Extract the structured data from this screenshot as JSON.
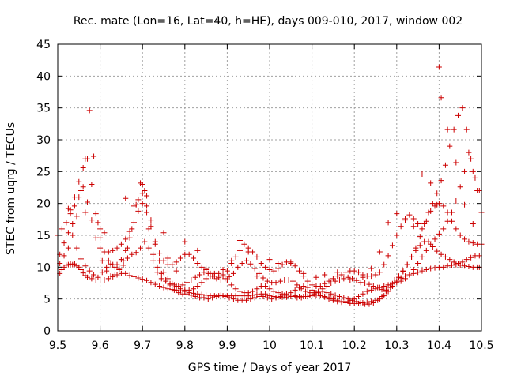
{
  "chart_data": {
    "type": "scatter",
    "title": "Rec. mate (Lon=16, Lat=40, h=HE), days 009-010, 2017, window 002",
    "xlabel": "GPS time / Days of year 2017",
    "ylabel": "STEC from uqrg / TECUs",
    "xlim": [
      9.5,
      10.5
    ],
    "ylim": [
      0,
      45
    ],
    "xticks": [
      9.5,
      9.6,
      9.7,
      9.8,
      9.9,
      10.0,
      10.1,
      10.2,
      10.3,
      10.4,
      10.5
    ],
    "xtick_labels": [
      "9.5",
      "9.6",
      "9.7",
      "9.8",
      "9.9",
      "10",
      "10.1",
      "10.2",
      "10.3",
      "10.4",
      "10.5"
    ],
    "yticks": [
      0,
      5,
      10,
      15,
      20,
      25,
      30,
      35,
      40,
      45
    ],
    "ytick_labels": [
      "0",
      "5",
      "10",
      "15",
      "20",
      "25",
      "30",
      "35",
      "40",
      "45"
    ],
    "grid": true,
    "marker": "+",
    "color": "#cc0000",
    "series": [
      {
        "x": [
          9.505,
          9.51,
          9.515,
          9.52,
          9.525,
          9.53,
          9.535,
          9.54,
          9.545,
          9.55,
          9.555,
          9.56,
          9.565,
          9.57,
          9.58,
          9.59,
          9.6,
          9.61,
          9.62,
          9.63,
          9.64,
          9.65,
          9.66,
          9.67,
          9.68,
          9.69,
          9.7,
          9.71,
          9.72,
          9.73,
          9.74,
          9.75,
          9.76,
          9.77,
          9.78,
          9.79,
          9.8,
          9.81,
          9.82,
          9.83,
          9.84,
          9.85,
          9.86,
          9.87,
          9.88,
          9.89,
          9.9,
          9.91,
          9.92,
          9.93,
          9.94,
          9.95,
          9.96,
          9.97,
          9.98,
          9.99,
          10.0,
          10.01,
          10.02,
          10.03,
          10.04,
          10.05,
          10.06,
          10.07,
          10.08,
          10.09,
          10.1,
          10.11,
          10.12,
          10.13,
          10.14,
          10.15,
          10.16,
          10.17,
          10.18,
          10.19,
          10.2,
          10.21,
          10.22,
          10.23,
          10.24,
          10.25,
          10.26,
          10.27,
          10.28,
          10.29,
          10.3,
          10.31,
          10.32,
          10.33,
          10.34,
          10.35,
          10.36,
          10.37,
          10.38,
          10.39,
          10.4,
          10.41,
          10.42,
          10.43,
          10.44,
          10.45,
          10.46,
          10.47,
          10.48,
          10.49,
          10.495
        ],
        "y": [
          9.0,
          9.6,
          10.0,
          10.3,
          10.4,
          10.5,
          10.4,
          10.5,
          10.2,
          10.0,
          9.6,
          9.1,
          8.7,
          8.4,
          8.2,
          8.0,
          8.0,
          8.0,
          8.2,
          8.5,
          8.8,
          9.0,
          9.0,
          8.7,
          8.5,
          8.3,
          8.1,
          7.9,
          7.6,
          7.3,
          7.0,
          6.8,
          6.6,
          6.5,
          6.4,
          6.3,
          6.2,
          6.0,
          5.9,
          5.8,
          5.7,
          5.6,
          5.5,
          5.5,
          5.5,
          5.5,
          5.5,
          5.5,
          5.5,
          5.5,
          5.5,
          5.5,
          5.6,
          5.7,
          5.8,
          5.8,
          5.5,
          5.4,
          5.3,
          5.3,
          5.3,
          5.4,
          5.5,
          5.4,
          5.4,
          5.4,
          5.5,
          5.6,
          5.5,
          5.3,
          5.0,
          4.8,
          4.6,
          4.5,
          4.4,
          4.3,
          4.3,
          4.3,
          4.4,
          4.5,
          4.6,
          4.8,
          5.0,
          5.5,
          6.2,
          7.0,
          7.8,
          8.3,
          8.6,
          8.8,
          9.0,
          9.2,
          9.4,
          9.6,
          9.8,
          9.9,
          10.0,
          10.0,
          10.2,
          10.3,
          10.4,
          10.3,
          10.2,
          10.1,
          10.0,
          10.0,
          10.0
        ]
      },
      {
        "x": [
          9.505,
          9.515,
          9.525,
          9.535,
          9.545,
          9.555,
          9.565,
          9.575,
          9.585,
          9.595,
          9.605,
          9.615,
          9.625,
          9.635,
          9.645,
          9.655,
          9.665,
          9.675,
          9.685,
          9.695,
          9.705,
          9.715,
          9.725,
          9.735,
          9.745,
          9.755,
          9.765,
          9.775,
          9.785,
          9.795,
          9.805,
          9.815,
          9.825,
          9.835,
          9.845,
          9.855,
          9.865,
          9.875,
          9.885,
          9.895,
          9.905,
          9.915,
          9.925,
          9.935,
          9.945,
          9.955,
          9.965,
          9.975,
          9.985,
          9.995,
          10.005,
          10.015,
          10.025,
          10.035,
          10.045,
          10.055,
          10.065,
          10.075,
          10.085,
          10.095,
          10.105,
          10.115,
          10.125,
          10.135,
          10.145,
          10.155,
          10.165,
          10.175,
          10.185,
          10.195,
          10.205,
          10.215,
          10.225,
          10.235,
          10.245,
          10.255,
          10.265,
          10.275,
          10.285,
          10.295,
          10.305,
          10.315,
          10.325,
          10.335,
          10.345,
          10.355,
          10.365,
          10.375,
          10.385,
          10.395,
          10.405,
          10.415,
          10.425,
          10.435,
          10.445,
          10.455,
          10.465,
          10.475,
          10.485,
          10.495
        ],
        "y": [
          12.0,
          13.8,
          15.4,
          16.8,
          13.0,
          11.3,
          10.2,
          9.4,
          8.8,
          8.4,
          9.2,
          10.0,
          10.5,
          10.0,
          9.8,
          10.3,
          11.4,
          12.0,
          12.3,
          13.0,
          14.0,
          13.0,
          11.0,
          9.2,
          8.2,
          7.8,
          7.4,
          7.2,
          7.0,
          7.2,
          7.6,
          8.0,
          8.4,
          8.8,
          9.2,
          9.0,
          8.6,
          8.2,
          8.0,
          8.2,
          8.5,
          9.0,
          10.0,
          10.6,
          11.0,
          10.5,
          9.8,
          9.0,
          8.3,
          7.8,
          7.6,
          7.6,
          7.8,
          8.0,
          8.0,
          7.8,
          7.2,
          6.6,
          6.2,
          6.0,
          6.0,
          6.2,
          6.6,
          7.0,
          7.5,
          7.8,
          8.0,
          8.2,
          8.4,
          8.2,
          7.9,
          7.6,
          7.5,
          7.3,
          7.0,
          6.8,
          6.5,
          6.4,
          6.8,
          7.6,
          8.4,
          9.3,
          10.4,
          11.6,
          12.6,
          13.4,
          14.0,
          14.0,
          13.2,
          12.5,
          12.0,
          11.6,
          11.2,
          10.8,
          10.6,
          10.8,
          11.2,
          11.5,
          11.8,
          11.8
        ]
      },
      {
        "x": [
          9.5,
          9.51,
          9.52,
          9.53,
          9.54,
          9.55,
          9.56,
          9.57,
          9.58,
          9.59,
          9.6,
          9.61,
          9.62,
          9.63,
          9.64,
          9.65,
          9.66,
          9.67,
          9.68,
          9.69,
          9.7,
          9.71,
          9.72,
          9.73,
          9.74,
          9.75,
          9.76,
          9.77,
          9.78,
          9.79,
          9.8,
          9.81,
          9.82,
          9.83,
          9.84,
          9.85,
          9.86,
          9.87,
          9.88,
          9.89,
          9.9,
          9.91,
          9.92,
          9.93,
          9.94,
          9.95,
          9.96,
          9.97,
          9.98,
          9.99,
          10.0,
          10.01,
          10.02,
          10.03,
          10.04,
          10.05,
          10.06,
          10.07,
          10.08,
          10.09,
          10.1,
          10.11,
          10.12,
          10.13,
          10.14,
          10.15,
          10.16,
          10.17,
          10.18,
          10.19,
          10.2,
          10.21,
          10.22,
          10.23,
          10.24,
          10.25,
          10.26,
          10.27,
          10.28,
          10.29,
          10.3,
          10.31,
          10.32,
          10.33,
          10.34,
          10.35,
          10.36,
          10.37,
          10.38,
          10.39,
          10.4,
          10.41,
          10.42,
          10.43,
          10.44,
          10.45,
          10.46,
          10.47,
          10.48,
          10.49,
          10.5
        ],
        "y": [
          15.0,
          16.0,
          17.0,
          18.4,
          19.6,
          21.0,
          22.6,
          20.2,
          17.4,
          14.6,
          13.0,
          12.4,
          12.4,
          12.6,
          13.0,
          13.6,
          14.4,
          15.6,
          17.0,
          18.8,
          20.0,
          18.6,
          16.4,
          14.0,
          12.2,
          11.0,
          10.4,
          10.4,
          10.8,
          11.4,
          12.0,
          12.0,
          11.4,
          10.6,
          10.0,
          9.6,
          9.0,
          8.6,
          8.4,
          8.8,
          9.4,
          10.6,
          11.6,
          12.6,
          13.6,
          13.0,
          12.4,
          11.6,
          10.6,
          10.0,
          9.6,
          9.4,
          9.8,
          10.4,
          10.8,
          10.8,
          10.2,
          9.4,
          8.6,
          7.8,
          7.2,
          7.0,
          7.0,
          7.4,
          7.8,
          8.2,
          8.6,
          8.8,
          9.2,
          9.4,
          9.4,
          9.2,
          8.8,
          8.6,
          8.6,
          8.8,
          9.2,
          10.4,
          11.8,
          13.4,
          15.0,
          16.4,
          17.6,
          18.2,
          17.6,
          16.8,
          16.0,
          17.2,
          18.8,
          19.6,
          20.0,
          19.6,
          18.6,
          17.2,
          16.0,
          15.0,
          14.4,
          14.0,
          13.8,
          13.6,
          13.6
        ]
      },
      {
        "x": [
          9.505,
          9.515,
          9.525,
          9.535,
          9.545,
          9.555,
          9.565,
          9.575,
          9.585,
          9.595,
          9.605,
          9.615,
          9.625,
          9.635,
          9.645,
          9.655,
          9.665,
          9.675,
          9.685,
          9.695,
          9.705,
          9.715,
          9.725,
          9.735,
          9.745,
          9.755,
          9.765,
          9.775,
          9.785,
          9.795,
          9.805,
          9.815,
          9.825,
          9.835,
          9.845,
          9.855,
          9.865,
          9.875,
          9.885,
          9.895,
          9.905,
          9.915,
          9.925,
          9.935,
          9.945,
          9.955,
          9.965,
          9.975,
          9.985,
          9.995,
          10.005,
          10.015,
          10.025,
          10.035,
          10.045,
          10.055,
          10.065,
          10.075,
          10.085,
          10.095,
          10.105,
          10.115,
          10.125,
          10.135,
          10.145,
          10.155,
          10.165,
          10.175,
          10.185,
          10.195,
          10.205,
          10.215,
          10.225,
          10.235,
          10.245,
          10.255,
          10.265,
          10.275,
          10.285,
          10.295,
          10.305,
          10.315,
          10.325,
          10.335,
          10.345,
          10.355,
          10.365,
          10.375,
          10.385,
          10.395,
          10.405,
          10.415,
          10.425,
          10.435,
          10.445,
          10.455,
          10.465,
          10.475,
          10.485,
          10.495
        ],
        "y": [
          10.6,
          11.8,
          13.0,
          15.0,
          18.0,
          22.0,
          27.0,
          34.6,
          27.4,
          17.0,
          11.0,
          9.4,
          8.6,
          8.8,
          9.6,
          11.0,
          13.0,
          16.0,
          19.8,
          23.2,
          22.0,
          16.0,
          12.0,
          10.0,
          9.0,
          8.0,
          7.2,
          6.4,
          6.0,
          5.8,
          5.8,
          5.6,
          5.4,
          5.2,
          5.2,
          5.0,
          5.2,
          5.4,
          5.6,
          5.4,
          5.2,
          5.0,
          4.8,
          4.8,
          4.8,
          5.0,
          5.2,
          5.4,
          5.4,
          5.2,
          5.0,
          5.2,
          5.4,
          5.6,
          5.6,
          5.4,
          5.2,
          5.2,
          5.4,
          5.6,
          5.8,
          6.0,
          6.2,
          6.0,
          5.8,
          5.6,
          5.4,
          5.2,
          5.0,
          4.8,
          4.6,
          4.4,
          4.2,
          4.2,
          4.4,
          4.8,
          5.4,
          6.2,
          7.2,
          8.0,
          8.6,
          9.4,
          10.4,
          11.6,
          13.0,
          14.8,
          16.8,
          18.6,
          20.0,
          21.6,
          23.6,
          26.0,
          29.0,
          31.6,
          33.8,
          35.0,
          31.6,
          27.0,
          24.0,
          22.0
        ]
      },
      {
        "x": [
          9.52,
          9.53,
          9.54,
          9.55,
          9.56,
          9.57,
          9.58,
          9.59,
          9.6,
          9.61,
          9.62,
          9.63,
          9.64,
          9.65,
          9.66,
          9.67,
          9.68,
          9.69,
          9.7,
          9.71,
          9.72,
          9.73,
          9.74,
          9.75,
          9.76,
          9.77,
          9.78,
          9.79,
          9.8,
          9.81,
          9.82,
          9.83,
          9.84,
          9.85,
          9.86,
          9.87,
          9.88,
          9.89,
          9.9,
          9.91,
          9.92,
          9.93,
          9.94,
          9.95,
          9.96,
          9.97,
          9.98,
          9.99,
          10.0,
          10.01,
          10.02,
          10.03,
          10.04,
          10.05,
          10.06,
          10.07,
          10.08,
          10.09,
          10.1,
          10.11,
          10.12,
          10.13,
          10.14,
          10.15,
          10.16,
          10.17,
          10.18,
          10.19,
          10.2,
          10.21,
          10.22,
          10.23,
          10.24,
          10.25,
          10.26,
          10.27,
          10.28,
          10.29,
          10.3,
          10.31,
          10.32,
          10.33,
          10.34,
          10.35,
          10.36,
          10.37,
          10.38,
          10.39,
          10.4,
          10.41,
          10.42,
          10.43,
          10.44,
          10.45,
          10.46,
          10.47,
          10.48,
          10.49
        ],
        "y": [
          17.0,
          19.0,
          21.0,
          23.4,
          25.6,
          27.0,
          23.0,
          18.4,
          14.6,
          12.4,
          11.0,
          10.4,
          10.4,
          11.2,
          12.6,
          14.6,
          17.0,
          20.6,
          23.0,
          21.2,
          17.4,
          13.6,
          11.0,
          9.2,
          8.2,
          7.4,
          7.0,
          6.6,
          6.4,
          6.4,
          6.6,
          7.0,
          7.6,
          8.2,
          8.6,
          9.0,
          9.0,
          8.6,
          8.0,
          7.2,
          6.6,
          6.2,
          6.0,
          6.0,
          6.2,
          6.6,
          7.0,
          7.0,
          6.6,
          6.2,
          6.0,
          5.8,
          5.8,
          6.0,
          6.4,
          6.8,
          7.0,
          6.8,
          6.4,
          6.0,
          5.6,
          5.4,
          5.2,
          5.0,
          4.8,
          4.6,
          4.6,
          4.8,
          5.0,
          5.4,
          5.8,
          6.2,
          6.4,
          6.6,
          6.8,
          7.0,
          7.2,
          7.4,
          7.6,
          7.8,
          8.2,
          8.8,
          9.6,
          10.6,
          11.6,
          12.6,
          13.6,
          14.4,
          15.2,
          16.0,
          17.2,
          18.6,
          20.4,
          22.6,
          25.0,
          28.0,
          25.0,
          22.0
        ]
      },
      {
        "x": [
          9.525,
          9.545,
          9.565,
          9.6,
          9.61,
          9.66,
          9.68,
          9.7,
          9.71,
          9.75,
          9.76,
          9.78,
          9.8,
          9.83,
          9.85,
          9.87,
          9.89,
          9.91,
          9.93,
          9.95,
          9.97,
          10.0,
          10.02,
          10.05,
          10.08,
          10.11,
          10.13,
          10.16,
          10.19,
          10.22,
          10.24,
          10.26,
          10.28,
          10.3,
          10.32,
          10.34,
          10.36,
          10.38,
          10.395,
          10.4,
          10.405,
          10.42,
          10.44,
          10.46,
          10.48,
          10.5
        ],
        "y": [
          19.2,
          18.0,
          18.6,
          16.0,
          15.4,
          20.8,
          19.6,
          21.6,
          19.6,
          15.4,
          11.4,
          9.4,
          14.0,
          12.6,
          9.8,
          8.6,
          9.6,
          11.0,
          14.2,
          12.4,
          8.6,
          11.2,
          10.6,
          10.6,
          9.0,
          8.4,
          8.8,
          9.2,
          8.0,
          8.4,
          9.8,
          12.4,
          17.0,
          18.4,
          17.4,
          16.4,
          24.6,
          23.2,
          19.8,
          41.4,
          36.6,
          31.6,
          26.4,
          19.8,
          16.8,
          18.6
        ]
      }
    ]
  }
}
